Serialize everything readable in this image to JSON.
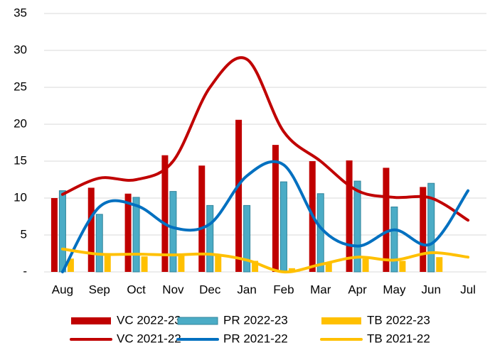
{
  "chart_data": {
    "type": "bar",
    "categories": [
      "Aug",
      "Sep",
      "Oct",
      "Nov",
      "Dec",
      "Jan",
      "Feb",
      "Mar",
      "Apr",
      "May",
      "Jun",
      "Jul"
    ],
    "series": [
      {
        "name": "VC 2022-23",
        "type": "bar",
        "color": "#c00000",
        "values": [
          10,
          11.4,
          10.6,
          15.8,
          14.4,
          20.6,
          17.2,
          15,
          15.1,
          14.1,
          11.5,
          null
        ]
      },
      {
        "name": "PR 2022-23",
        "type": "bar",
        "color": "#4bacc6",
        "values": [
          11,
          7.8,
          10.1,
          10.9,
          9,
          9,
          12.2,
          10.6,
          12.3,
          8.8,
          12,
          null
        ]
      },
      {
        "name": "TB 2022-23",
        "type": "bar",
        "color": "#ffc000",
        "values": [
          1.8,
          2.2,
          2.1,
          2.4,
          2.2,
          1.5,
          0.5,
          1.2,
          1.8,
          1.5,
          2,
          null
        ]
      },
      {
        "name": "VC 2021-22",
        "type": "line",
        "color": "#c00000",
        "values": [
          10.5,
          12.7,
          12.5,
          15,
          25,
          28.8,
          19,
          15,
          11,
          10.1,
          10,
          7
        ]
      },
      {
        "name": "PR 2021-22",
        "type": "line",
        "color": "#0070c0",
        "values": [
          0,
          8.8,
          9,
          6,
          6.5,
          13,
          14.5,
          6,
          3.5,
          5.7,
          3.8,
          11
        ]
      },
      {
        "name": "TB 2021-22",
        "type": "line",
        "color": "#ffc000",
        "values": [
          3.1,
          2.4,
          2.4,
          2.3,
          2.4,
          1.6,
          0,
          1,
          2,
          1.6,
          2.6,
          2
        ]
      }
    ],
    "ylim": [
      0,
      35
    ],
    "yticks": [
      {
        "value": 0,
        "label": "-"
      },
      5,
      10,
      15,
      20,
      25,
      30,
      35
    ],
    "grid": true
  }
}
